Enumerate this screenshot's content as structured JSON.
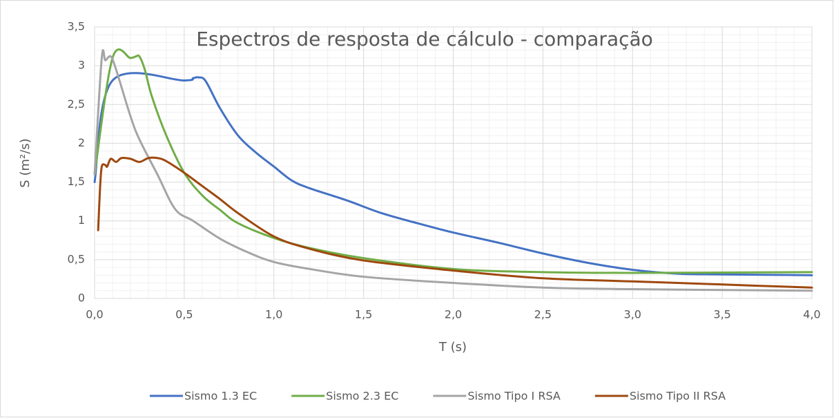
{
  "chart_data": {
    "type": "line",
    "title": "Espectros de resposta de cálculo - comparação",
    "xlabel": "T (s)",
    "ylabel": "S (m²/s)",
    "xlim": [
      0,
      4
    ],
    "ylim": [
      0,
      3.5
    ],
    "xticks": [
      {
        "value": 0,
        "label": "0,0"
      },
      {
        "value": 0.5,
        "label": "0,5"
      },
      {
        "value": 1,
        "label": "1,0"
      },
      {
        "value": 1.5,
        "label": "1,5"
      },
      {
        "value": 2,
        "label": "2,0"
      },
      {
        "value": 2.5,
        "label": "2,5"
      },
      {
        "value": 3,
        "label": "3,0"
      },
      {
        "value": 3.5,
        "label": "3,5"
      },
      {
        "value": 4,
        "label": "4,0"
      }
    ],
    "yticks": [
      0,
      {
        "value": 0.5,
        "label": "0,5"
      },
      1,
      {
        "value": 1.5,
        "label": "1,5"
      },
      2,
      {
        "value": 2.5,
        "label": "2,5"
      },
      3,
      {
        "value": 3.5,
        "label": "3,5"
      }
    ],
    "grid": true,
    "minor_grid": true,
    "legend": "bottom",
    "series": [
      {
        "name": "Sismo 1.3 EC",
        "color": "#4472c4",
        "x": [
          0,
          0.1,
          0.5,
          0.55,
          0.58,
          0.62,
          0.7,
          0.8,
          0.9,
          1.0,
          1.1,
          1.2,
          1.4,
          1.6,
          1.8,
          2.0,
          2.25,
          2.5,
          2.75,
          3.0,
          3.25,
          3.5,
          4.0
        ],
        "values": [
          1.5,
          2.81,
          2.81,
          2.84,
          2.85,
          2.8,
          2.45,
          2.1,
          1.88,
          1.7,
          1.52,
          1.42,
          1.27,
          1.1,
          0.97,
          0.85,
          0.72,
          0.58,
          0.46,
          0.37,
          0.32,
          0.31,
          0.3
        ]
      },
      {
        "name": "Sismo 2.3 EC",
        "color": "#70ad47",
        "x": [
          0,
          0.1,
          0.2,
          0.23,
          0.25,
          0.28,
          0.32,
          0.4,
          0.5,
          0.6,
          0.7,
          0.8,
          1.0,
          1.2,
          1.5,
          2.0,
          2.5,
          3.0,
          4.0
        ],
        "values": [
          1.6,
          3.1,
          3.1,
          3.12,
          3.12,
          2.95,
          2.6,
          2.1,
          1.62,
          1.33,
          1.14,
          0.97,
          0.78,
          0.65,
          0.52,
          0.38,
          0.34,
          0.33,
          0.34
        ]
      },
      {
        "name": "Sismo Tipo I RSA",
        "color": "#a5a5a5",
        "x": [
          0,
          0.04,
          0.06,
          0.09,
          0.12,
          0.2,
          0.25,
          0.35,
          0.45,
          0.55,
          0.7,
          0.85,
          1.0,
          1.2,
          1.5,
          2.0,
          2.5,
          3.0,
          4.0
        ],
        "values": [
          1.6,
          3.1,
          3.07,
          3.12,
          2.95,
          2.35,
          2.05,
          1.6,
          1.15,
          1.0,
          0.77,
          0.6,
          0.47,
          0.38,
          0.28,
          0.2,
          0.14,
          0.12,
          0.1
        ]
      },
      {
        "name": "Sismo Tipo II RSA",
        "color": "#9e480e",
        "x": [
          0.02,
          0.03,
          0.04,
          0.06,
          0.07,
          0.09,
          0.12,
          0.15,
          0.2,
          0.25,
          0.3,
          0.35,
          0.4,
          0.5,
          0.6,
          0.7,
          0.8,
          1.0,
          1.2,
          1.5,
          2.0,
          2.5,
          3.0,
          3.5,
          4.0
        ],
        "values": [
          0.88,
          1.4,
          1.7,
          1.72,
          1.7,
          1.8,
          1.76,
          1.81,
          1.8,
          1.76,
          1.81,
          1.81,
          1.77,
          1.62,
          1.45,
          1.28,
          1.1,
          0.8,
          0.64,
          0.49,
          0.36,
          0.26,
          0.22,
          0.18,
          0.14
        ]
      }
    ]
  }
}
